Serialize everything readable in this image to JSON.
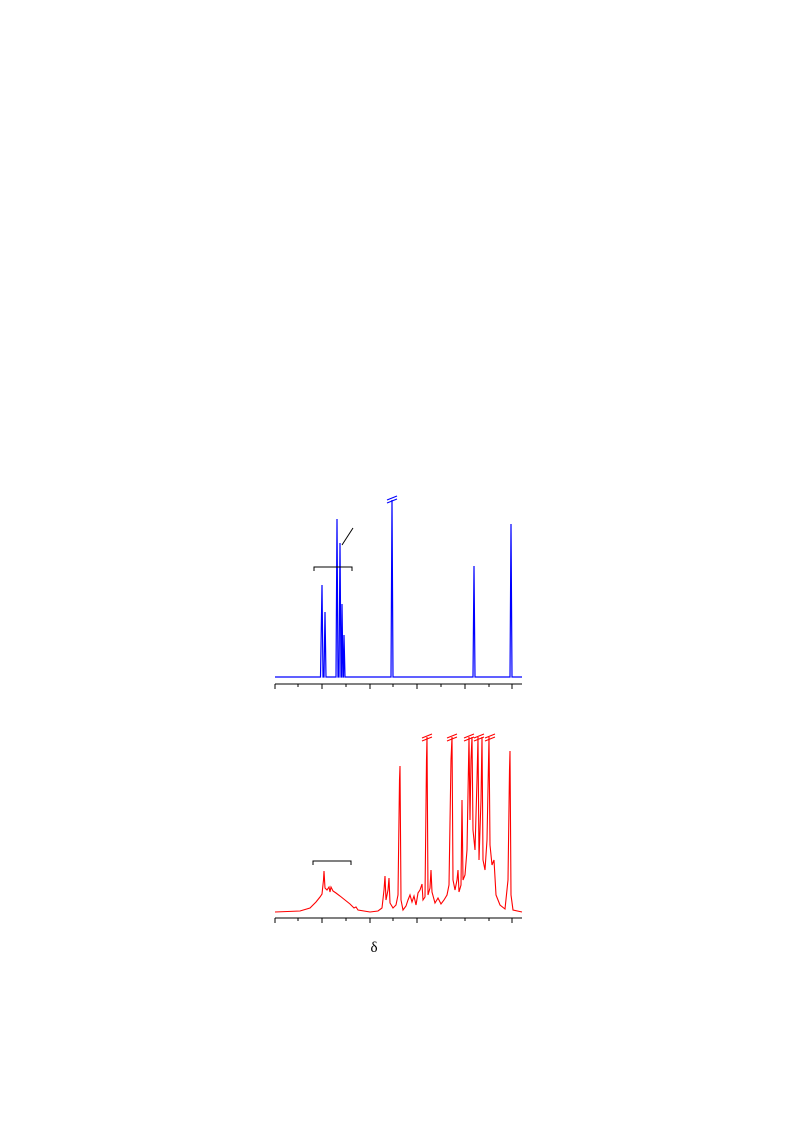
{
  "figure": {
    "axis_label": "δ"
  }
}
